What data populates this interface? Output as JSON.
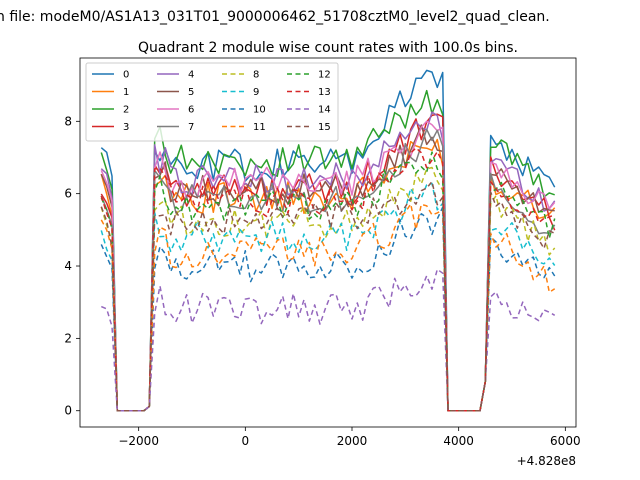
{
  "figure": {
    "suptitle": "n file: modeM0/AS1A13_031T01_9000006462_51708cztM0_level2_quad_clean.",
    "title": "Quadrant 2 module wise count rates with 100.0s bins.",
    "x_offset_label": "+4.828e8"
  },
  "chart_data": {
    "type": "line",
    "title": "Quadrant 2 module wise count rates with 100.0s bins.",
    "xlabel": "",
    "ylabel": "",
    "xlim": [
      -3100,
      6200
    ],
    "ylim": [
      -0.45,
      9.75
    ],
    "x_ticks": [
      -2000,
      0,
      2000,
      4000,
      6000
    ],
    "x_tick_labels": [
      "−2000",
      "0",
      "2000",
      "4000",
      "6000"
    ],
    "y_ticks": [
      0,
      2,
      4,
      6,
      8
    ],
    "y_tick_labels": [
      "0",
      "2",
      "4",
      "6",
      "8"
    ],
    "grid": false,
    "legend_position": "top-left",
    "legend_columns": 4,
    "x_offset": 482800000,
    "x_start": -2700,
    "x_step": 100,
    "x_end": 5800,
    "series": [
      {
        "name": "0",
        "color": "#1f77b4",
        "dash": "solid",
        "level": 6.8,
        "post_level": 7.5,
        "edge": 7.4,
        "end": 6.2,
        "peak": 9.3
      },
      {
        "name": "1",
        "color": "#ff7f0e",
        "dash": "solid",
        "level": 5.9,
        "post_level": 6.4,
        "edge": 6.4,
        "end": 5.4,
        "peak": 7.3
      },
      {
        "name": "2",
        "color": "#2ca02c",
        "dash": "solid",
        "level": 6.9,
        "post_level": 7.5,
        "edge": 7.1,
        "end": 5.9,
        "peak": 8.7
      },
      {
        "name": "3",
        "color": "#d62728",
        "dash": "solid",
        "level": 6.1,
        "post_level": 6.8,
        "edge": 6.1,
        "end": 5.3,
        "peak": 7.9
      },
      {
        "name": "4",
        "color": "#9467bd",
        "dash": "solid",
        "level": 6.4,
        "post_level": 7.0,
        "edge": 6.8,
        "end": 5.6,
        "peak": 8.0
      },
      {
        "name": "5",
        "color": "#8c564b",
        "dash": "solid",
        "level": 6.1,
        "post_level": 6.7,
        "edge": 6.5,
        "end": 5.3,
        "peak": 7.6
      },
      {
        "name": "6",
        "color": "#e377c2",
        "dash": "solid",
        "level": 6.3,
        "post_level": 6.8,
        "edge": 6.6,
        "end": 5.5,
        "peak": 7.8
      },
      {
        "name": "7",
        "color": "#7f7f7f",
        "dash": "solid",
        "level": 5.9,
        "post_level": 6.3,
        "edge": 6.0,
        "end": 4.8,
        "peak": 7.4
      },
      {
        "name": "8",
        "color": "#bcbd22",
        "dash": "dashed",
        "level": 5.2,
        "post_level": 5.7,
        "edge": 5.5,
        "end": 4.5,
        "peak": 6.4
      },
      {
        "name": "9",
        "color": "#17becf",
        "dash": "dashed",
        "level": 4.8,
        "post_level": 5.3,
        "edge": 4.9,
        "end": 4.0,
        "peak": 6.0
      },
      {
        "name": "10",
        "color": "#1f77b4",
        "dash": "dashed",
        "level": 4.0,
        "post_level": 4.6,
        "edge": 4.7,
        "end": 3.6,
        "peak": 5.3
      },
      {
        "name": "11",
        "color": "#ff7f0e",
        "dash": "dashed",
        "level": 4.4,
        "post_level": 4.9,
        "edge": 5.3,
        "end": 3.5,
        "peak": 5.6
      },
      {
        "name": "12",
        "color": "#2ca02c",
        "dash": "dashed",
        "level": 5.7,
        "post_level": 6.2,
        "edge": 5.9,
        "end": 5.0,
        "peak": 6.9
      },
      {
        "name": "13",
        "color": "#d62728",
        "dash": "dashed",
        "level": 5.8,
        "post_level": 6.3,
        "edge": 5.9,
        "end": 5.1,
        "peak": 7.1
      },
      {
        "name": "14",
        "color": "#9467bd",
        "dash": "dashed",
        "level": 2.8,
        "post_level": 3.0,
        "edge": 3.0,
        "end": 2.5,
        "peak": 3.7
      },
      {
        "name": "15",
        "color": "#8c564b",
        "dash": "dashed",
        "level": 5.3,
        "post_level": 5.7,
        "edge": 5.5,
        "end": 4.6,
        "peak": 6.1
      }
    ]
  }
}
